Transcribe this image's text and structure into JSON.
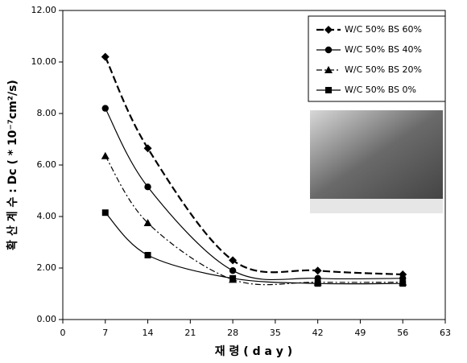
{
  "chart_data": {
    "type": "line",
    "x_label": "재 령 ( d a y )",
    "y_label": "확 산 계 수 : Dc ( * 10⁻⁷cm²/s)",
    "x": [
      7,
      14,
      28,
      42,
      56
    ],
    "xlim": [
      0,
      63
    ],
    "xticks": [
      0,
      7,
      14,
      21,
      28,
      35,
      42,
      49,
      56,
      63
    ],
    "ylim": [
      0,
      12
    ],
    "yticks": [
      {
        "value": 0,
        "label": "0.00"
      },
      {
        "value": 2,
        "label": "2.00"
      },
      {
        "value": 4,
        "label": "4.00"
      },
      {
        "value": 6,
        "label": "6.00"
      },
      {
        "value": 8,
        "label": "8.00"
      },
      {
        "value": 10,
        "label": "10.00"
      },
      {
        "value": 12,
        "label": "12.00"
      }
    ],
    "legend": "upper right",
    "series": [
      {
        "name": "W/C 50% BS 60%",
        "color": "#000000",
        "marker": "diamond",
        "line_style": "dashed",
        "values": [
          10.2,
          6.65,
          2.3,
          1.9,
          1.75
        ]
      },
      {
        "name": "W/C 50% BS 40%",
        "color": "#000000",
        "marker": "circle",
        "line_style": "solid",
        "values": [
          8.2,
          5.15,
          1.9,
          1.6,
          1.6
        ]
      },
      {
        "name": "W/C 50% BS 20%",
        "color": "#000000",
        "marker": "triangle",
        "line_style": "dashdot",
        "values": [
          6.35,
          3.75,
          1.55,
          1.45,
          1.45
        ]
      },
      {
        "name": "W/C 50% BS 0%",
        "color": "#000000",
        "marker": "square",
        "line_style": "solid",
        "values": [
          4.15,
          2.5,
          1.6,
          1.4,
          1.4
        ]
      }
    ]
  }
}
